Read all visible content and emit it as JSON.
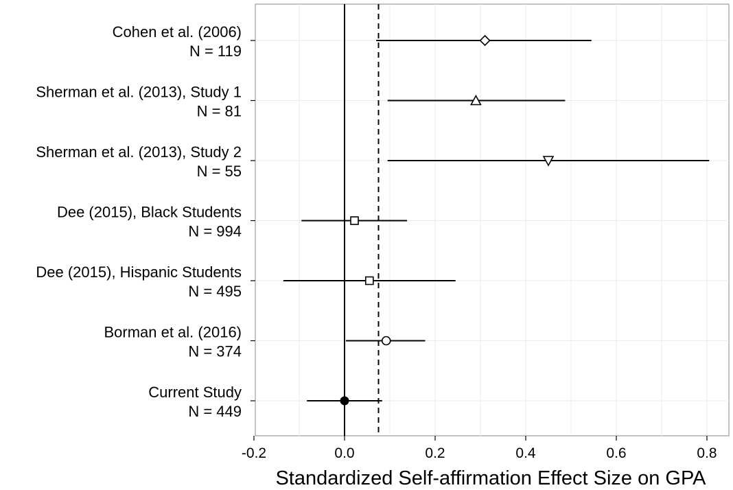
{
  "chart_data": {
    "type": "forest",
    "title": "",
    "xlabel": "Standardized Self-affirmation Effect Size on GPA",
    "ylabel": "",
    "xlim": [
      -0.2,
      0.85
    ],
    "x_ticks": [
      "-0.2",
      "0.0",
      "0.2",
      "0.4",
      "0.6",
      "0.8"
    ],
    "x_tick_values": [
      -0.2,
      0.0,
      0.2,
      0.4,
      0.6,
      0.8
    ],
    "reference_line": 0.0,
    "pooled_estimate_dashed": 0.075,
    "grid": true,
    "studies": [
      {
        "name": "Cohen et al. (2006)",
        "n_label": "N = 119",
        "estimate": 0.31,
        "ci_low": 0.07,
        "ci_high": 0.545,
        "marker": "diamond"
      },
      {
        "name": "Sherman et al. (2013), Study 1",
        "n_label": "N = 81",
        "estimate": 0.29,
        "ci_low": 0.095,
        "ci_high": 0.487,
        "marker": "triangle-up"
      },
      {
        "name": "Sherman et al. (2013), Study 2",
        "n_label": "N = 55",
        "estimate": 0.45,
        "ci_low": 0.095,
        "ci_high": 0.805,
        "marker": "triangle-down"
      },
      {
        "name": "Dee (2015), Black Students",
        "n_label": "N = 994",
        "estimate": 0.022,
        "ci_low": -0.095,
        "ci_high": 0.138,
        "marker": "square"
      },
      {
        "name": "Dee (2015), Hispanic Students",
        "n_label": "N = 495",
        "estimate": 0.055,
        "ci_low": -0.135,
        "ci_high": 0.245,
        "marker": "square"
      },
      {
        "name": "Borman et al. (2016)",
        "n_label": "N = 374",
        "estimate": 0.092,
        "ci_low": 0.003,
        "ci_high": 0.178,
        "marker": "circle"
      },
      {
        "name": "Current Study",
        "n_label": "N = 449",
        "estimate": 0.0,
        "ci_low": -0.083,
        "ci_high": 0.083,
        "marker": "circle-filled"
      }
    ]
  }
}
